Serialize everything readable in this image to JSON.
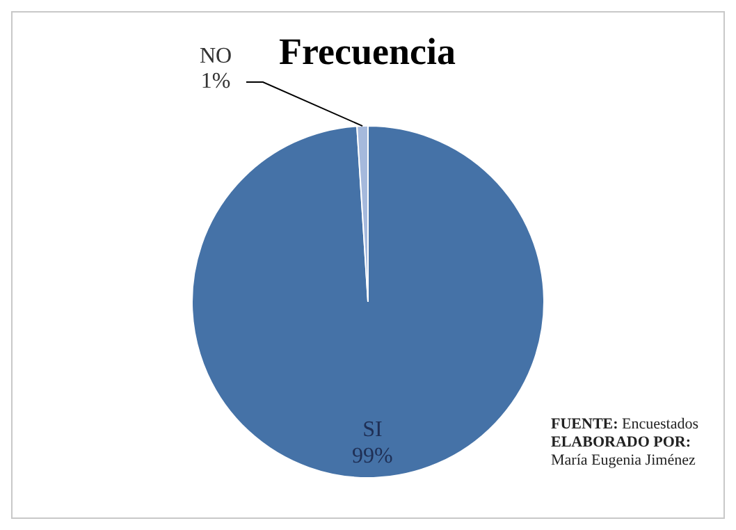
{
  "chart_data": {
    "type": "pie",
    "title": "Frecuencia",
    "categories": [
      "SI",
      "NO"
    ],
    "values": [
      99,
      1
    ],
    "value_labels": [
      "99%",
      "1%"
    ],
    "colors": [
      "#4572a7",
      "#a5b9dc"
    ],
    "legend": false,
    "annotations": [
      "FUENTE: Encuestados",
      "ELABORADO POR: María Eugenia Jiménez"
    ]
  }
}
